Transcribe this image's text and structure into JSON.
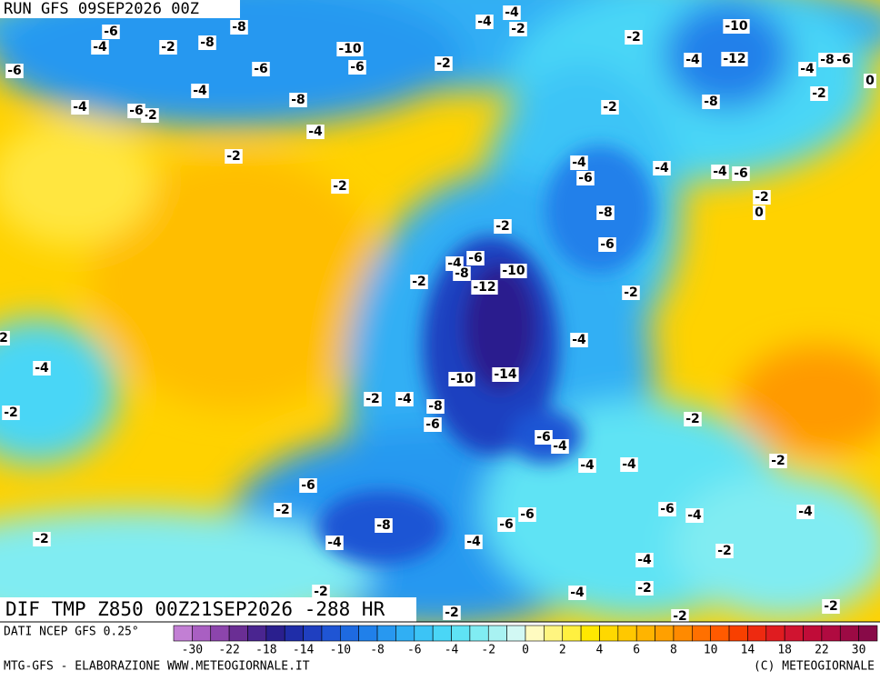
{
  "header": {
    "run": "RUN GFS 09SEP2026 00Z"
  },
  "map": {
    "title": "DIF TMP Z850 00Z21SEP2026 -288 HR",
    "labels": [
      "-6",
      "-4",
      "-2",
      "-8",
      "-8",
      "-6",
      "-4",
      "-4",
      "-2",
      "-6",
      "-6",
      "-8",
      "-10",
      "-6",
      "-4",
      "-2",
      "-2",
      "-2",
      "-4",
      "-4",
      "-2",
      "-2",
      "-10",
      "-12",
      "-4",
      "-4",
      "-8",
      "-6",
      "0",
      "-2",
      "-8",
      "-2",
      "-4",
      "-6",
      "-4",
      "-4",
      "-6",
      "-2",
      "0",
      "-2",
      "-8",
      "-6",
      "-4",
      "-6",
      "-8",
      "-10",
      "-12",
      "-2",
      "-2",
      "-4",
      "-4",
      "2",
      "-2",
      "-14",
      "-10",
      "-2",
      "-4",
      "-8",
      "-6",
      "-4",
      "-6",
      "-4",
      "-4",
      "-2",
      "-2",
      "-6",
      "-6",
      "-4",
      "-4",
      "-2",
      "-8",
      "-6",
      "-6",
      "-2",
      "-4",
      "-4",
      "-2",
      "-4",
      "-2",
      "-4",
      "-2",
      "-2",
      "-2",
      "-2"
    ]
  },
  "legend": {
    "source": "DATI NCEP GFS 0.25°",
    "colors": [
      "#c27fd4",
      "#a95fc2",
      "#8c45ac",
      "#6a2e94",
      "#4a2590",
      "#2a1f8e",
      "#1f2da8",
      "#1f3fc0",
      "#1f55d4",
      "#1e6ae0",
      "#2080ea",
      "#2898f0",
      "#30aff4",
      "#3cc4f6",
      "#4ad6f6",
      "#5fe3f4",
      "#80ecf2",
      "#a8f2f2",
      "#d2f8f4",
      "#fffbc0",
      "#fff580",
      "#fff040",
      "#ffe800",
      "#ffd800",
      "#ffc800",
      "#ffb400",
      "#ffa000",
      "#ff8a00",
      "#ff7000",
      "#ff5a00",
      "#f84000",
      "#ee2a10",
      "#e01c20",
      "#d01430",
      "#c00c38",
      "#b00a40",
      "#9c0a44",
      "#880a48"
    ],
    "ticks": [
      "-30",
      "-22",
      "-18",
      "-14",
      "-10",
      "-8",
      "-6",
      "-4",
      "-2",
      "0",
      "2",
      "4",
      "6",
      "8",
      "10",
      "14",
      "18",
      "22",
      "30"
    ]
  },
  "footer": {
    "credit": "MTG-GFS - ELABORAZIONE WWW.METEOGIORNALE.IT",
    "copyright": "(C) METEOGIORNALE"
  }
}
